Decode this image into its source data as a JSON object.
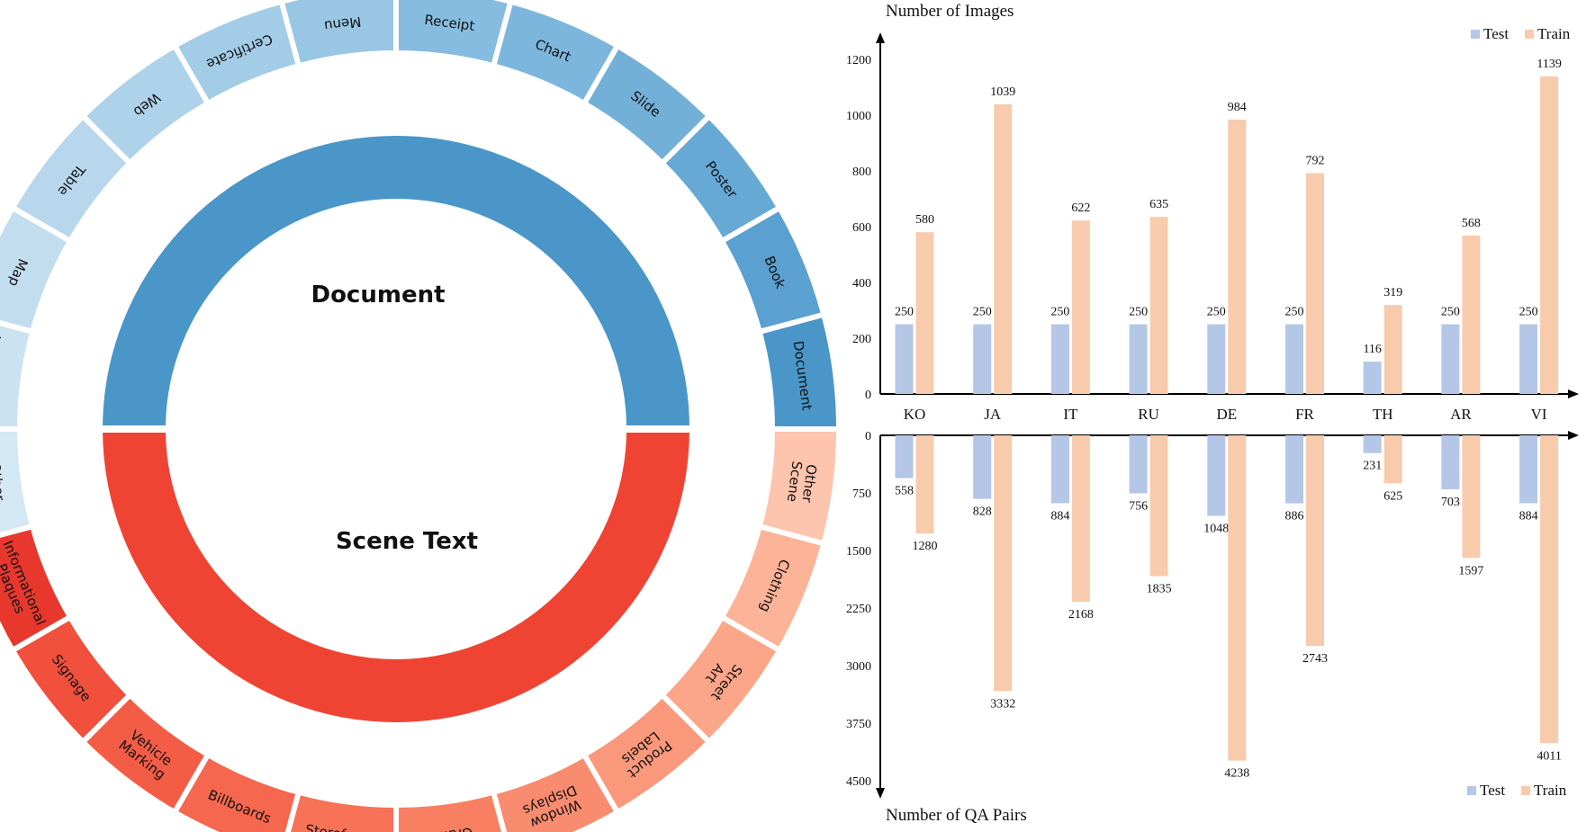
{
  "chart_data": [
    {
      "type": "sunburst",
      "inner": [
        {
          "name": "Document",
          "color": "#4a96c8"
        },
        {
          "name": "Scene Text",
          "color": "#ef4433"
        }
      ],
      "outer_document": [
        {
          "name": "Document",
          "color": "#4a96c8",
          "rot": 0
        },
        {
          "name": "Book",
          "color": "#5aa0d0",
          "rot": 0
        },
        {
          "name": "Poster",
          "color": "#67a9d5",
          "rot": 0
        },
        {
          "name": "Slide",
          "color": "#72b0d8",
          "rot": 0
        },
        {
          "name": "Chart",
          "color": "#7cb6dc",
          "rot": 0
        },
        {
          "name": "Receipt",
          "color": "#86bcdf",
          "rot": 0
        },
        {
          "name": "Menu",
          "color": "#98c6e3",
          "rot": 180
        },
        {
          "name": "Certificate",
          "color": "#a3cce6",
          "rot": 180
        },
        {
          "name": "Web",
          "color": "#aed2e9",
          "rot": 180
        },
        {
          "name": "Table",
          "color": "#b8d7ec",
          "rot": 180
        },
        {
          "name": "Map",
          "color": "#c2ddee",
          "rot": 180
        },
        {
          "name": "Handwriting",
          "color": "#cbe2f1",
          "rot": 180
        },
        {
          "name": "Other Docs",
          "color": "#d4e7f4",
          "rot": 180
        }
      ],
      "outer_scene": [
        {
          "name": "Informational Plaques",
          "color": "#e8382d",
          "rot": 180
        },
        {
          "name": "Signage",
          "color": "#f0503c",
          "rot": 180
        },
        {
          "name": "Vehicle Marking",
          "color": "#f35c45",
          "rot": 180
        },
        {
          "name": "Billboards",
          "color": "#f5674e",
          "rot": 180
        },
        {
          "name": "Storefronts",
          "color": "#f77257",
          "rot": 180
        },
        {
          "name": "Graffiti",
          "color": "#f87f62",
          "rot": 0
        },
        {
          "name": "Window Displays",
          "color": "#f98b6e",
          "rot": 0
        },
        {
          "name": "Product Labels",
          "color": "#fa987c",
          "rot": 0
        },
        {
          "name": "Street Art",
          "color": "#fba689",
          "rot": 0
        },
        {
          "name": "Clothing",
          "color": "#fcb398",
          "rot": 0
        },
        {
          "name": "Other Scene",
          "color": "#fdc4ae",
          "rot": 0
        }
      ]
    },
    {
      "type": "bar",
      "title": "Number of Images",
      "categories": [
        "KO",
        "JA",
        "IT",
        "RU",
        "DE",
        "FR",
        "TH",
        "AR",
        "VI"
      ],
      "series": [
        {
          "name": "Test",
          "color": "#b4c7e7",
          "values": [
            250,
            250,
            250,
            250,
            250,
            250,
            116,
            250,
            250
          ]
        },
        {
          "name": "Train",
          "color": "#f8cbad",
          "values": [
            580,
            1039,
            622,
            635,
            984,
            792,
            319,
            568,
            1139
          ]
        }
      ],
      "yticks": [
        0,
        200,
        400,
        600,
        800,
        1000,
        1200
      ],
      "ylim": [
        0,
        1200
      ]
    },
    {
      "type": "bar",
      "title": "Number of QA Pairs",
      "orientation": "inverted",
      "categories": [
        "KO",
        "JA",
        "IT",
        "RU",
        "DE",
        "FR",
        "TH",
        "AR",
        "VI"
      ],
      "series": [
        {
          "name": "Test",
          "color": "#b4c7e7",
          "values": [
            558,
            828,
            884,
            756,
            1048,
            886,
            231,
            703,
            884
          ]
        },
        {
          "name": "Train",
          "color": "#f8cbad",
          "values": [
            1280,
            3332,
            2168,
            1835,
            4238,
            2743,
            625,
            1597,
            4011
          ]
        }
      ],
      "yticks": [
        0,
        750,
        1500,
        2250,
        3000,
        3750,
        4500
      ],
      "ylim": [
        0,
        4500
      ]
    }
  ]
}
